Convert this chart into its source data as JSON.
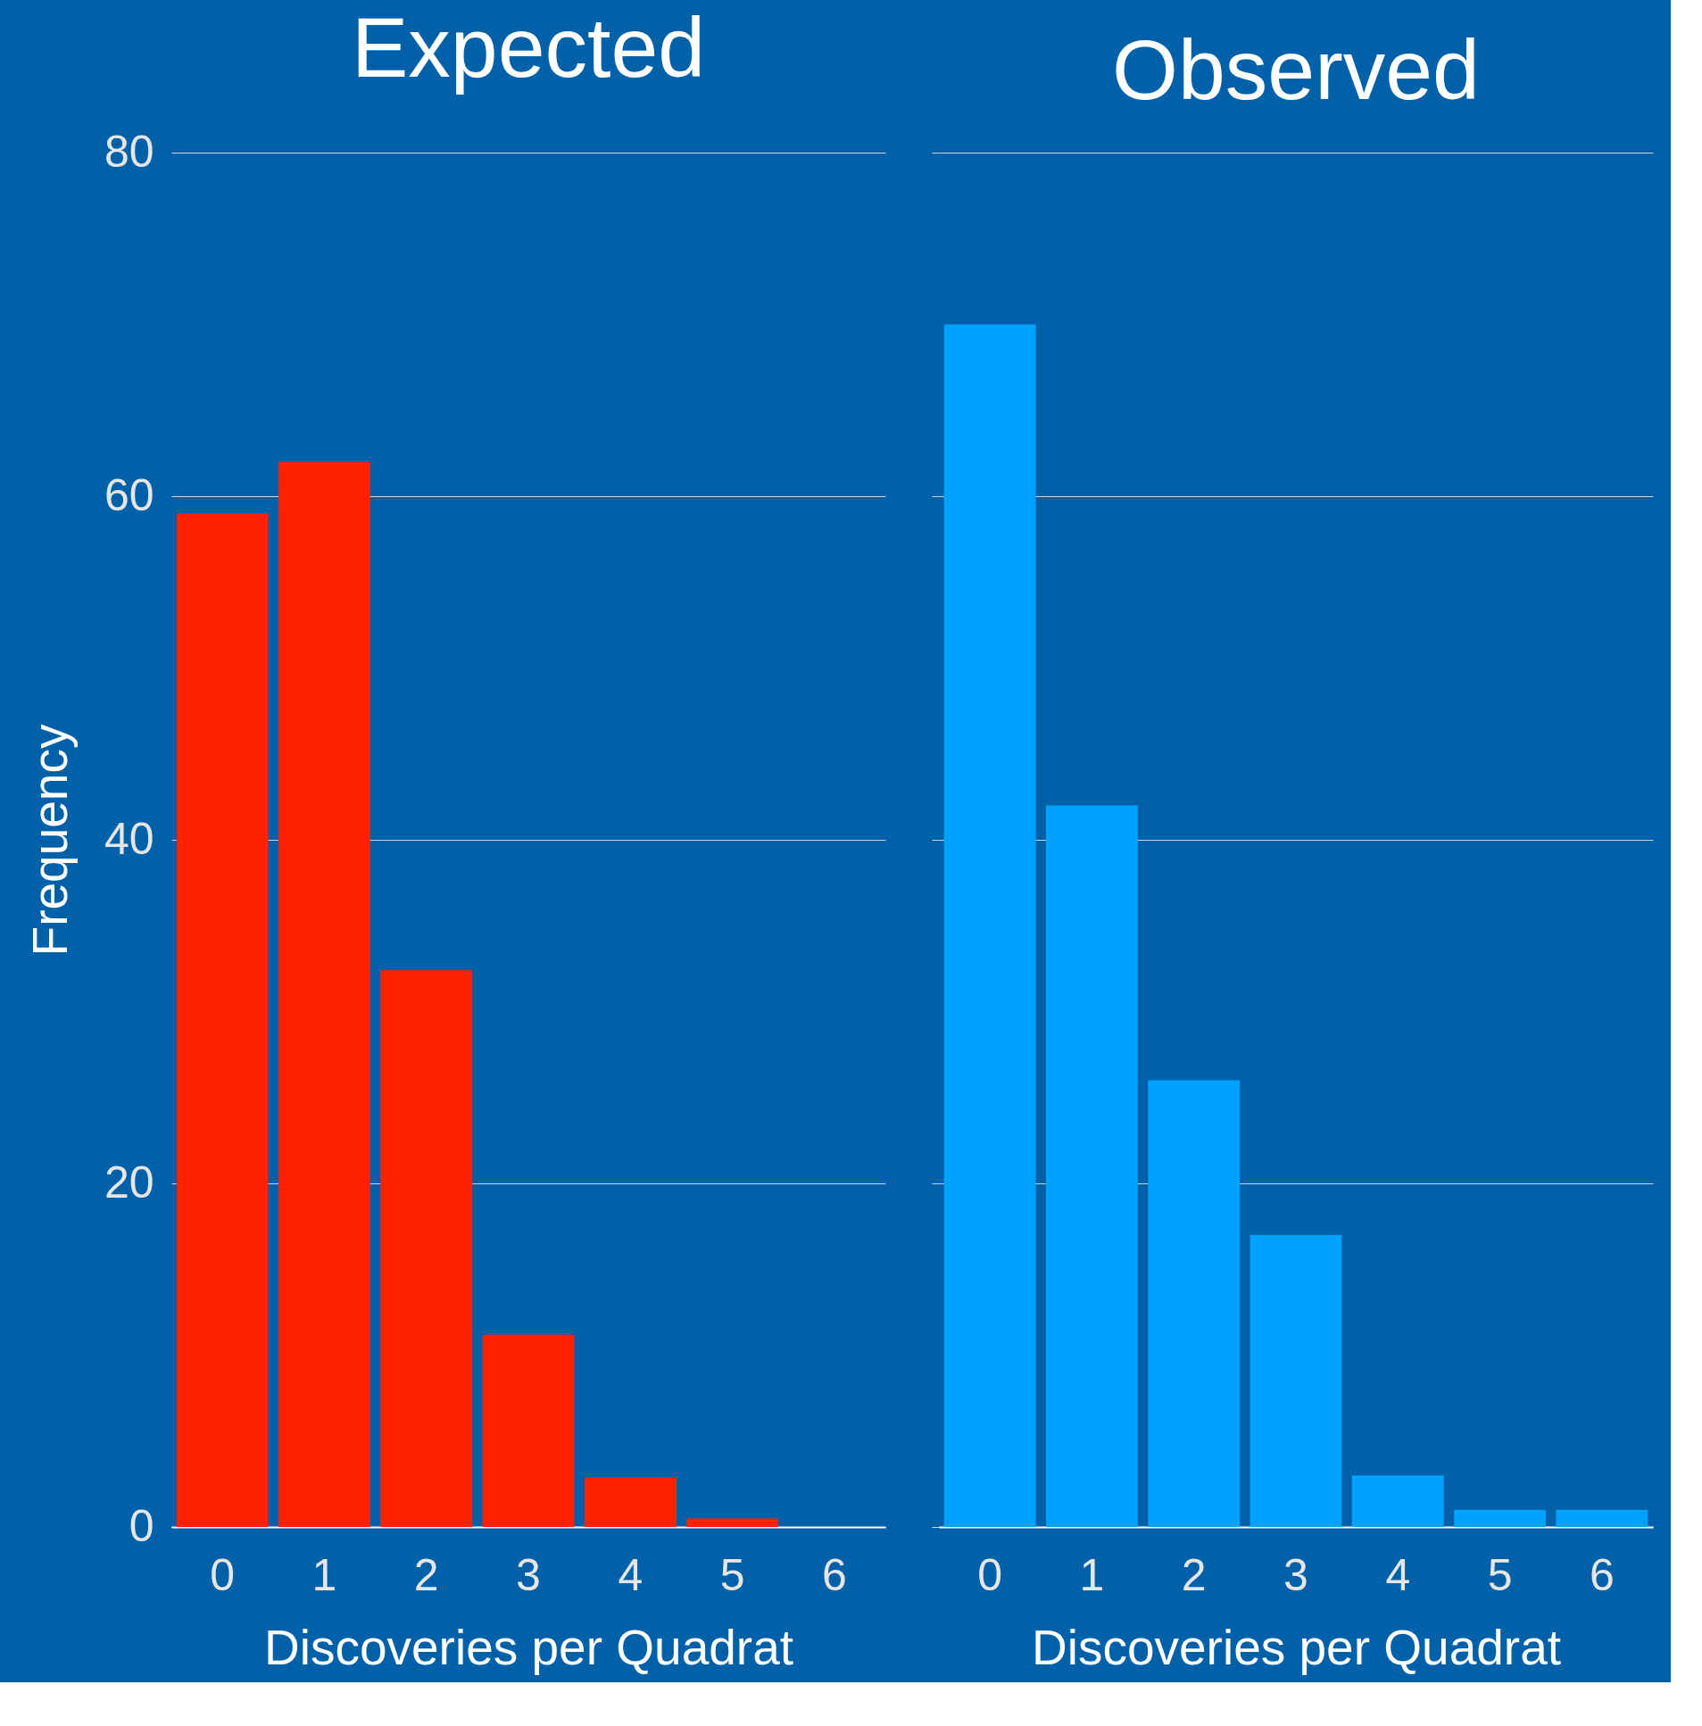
{
  "chart_data": [
    {
      "type": "bar",
      "title": "Expected",
      "xlabel": "Discoveries per Quadrat",
      "ylabel": "Frequency",
      "categories": [
        "0",
        "1",
        "2",
        "3",
        "4",
        "5",
        "6"
      ],
      "series": [
        {
          "color": "#ff2200",
          "values": [
            59,
            62,
            32.4,
            11.2,
            2.9,
            0.5,
            0
          ]
        }
      ],
      "ylim": [
        0,
        80
      ],
      "yticks": [
        0,
        20,
        40,
        60,
        80
      ],
      "grid": "y"
    },
    {
      "type": "bar",
      "title": "Observed",
      "xlabel": "Discoveries per Quadrat",
      "categories": [
        "0",
        "1",
        "2",
        "3",
        "4",
        "5",
        "6"
      ],
      "series": [
        {
          "color": "#00a2ff",
          "values": [
            70,
            42,
            26,
            17,
            3,
            1,
            1
          ]
        }
      ],
      "ylim": [
        0,
        80
      ],
      "yticks": [
        0,
        20,
        40,
        60,
        80
      ],
      "grid": "y",
      "tick_labels": "x"
    }
  ]
}
